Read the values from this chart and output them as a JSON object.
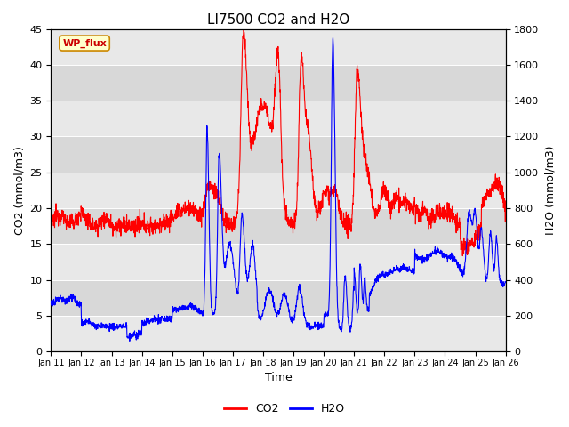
{
  "title": "LI7500 CO2 and H2O",
  "xlabel": "Time",
  "ylabel_left": "CO2 (mmol/m3)",
  "ylabel_right": "H2O (mmol/m3)",
  "xlim": [
    0,
    15
  ],
  "ylim_left": [
    0,
    45
  ],
  "ylim_right": [
    0,
    1800
  ],
  "x_tick_labels": [
    "Jan 11",
    "Jan 12",
    "Jan 13",
    "Jan 14",
    "Jan 15",
    "Jan 16",
    "Jan 17",
    "Jan 18",
    "Jan 19",
    "Jan 20",
    "Jan 21",
    "Jan 22",
    "Jan 23",
    "Jan 24",
    "Jan 25",
    "Jan 26"
  ],
  "watermark_text": "WP_flux",
  "co2_color": "#FF0000",
  "h2o_color": "#0000FF",
  "bg_dark": "#D8D8D8",
  "bg_light": "#E8E8E8",
  "grid_color": "#FFFFFF",
  "title_fontsize": 11,
  "axis_label_fontsize": 9,
  "tick_fontsize": 8,
  "legend_fontsize": 9,
  "watermark_fontsize": 8
}
